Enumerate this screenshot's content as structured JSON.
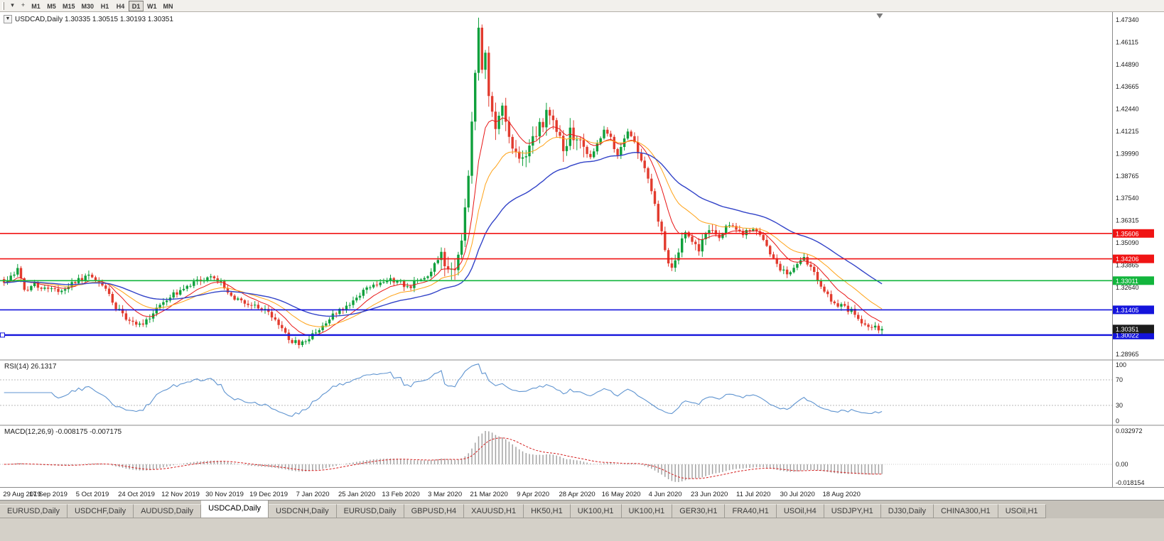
{
  "toolbar": {
    "timeframes": [
      {
        "label": "M1",
        "active": false
      },
      {
        "label": "M5",
        "active": false
      },
      {
        "label": "M15",
        "active": false
      },
      {
        "label": "M30",
        "active": false
      },
      {
        "label": "H1",
        "active": false
      },
      {
        "label": "H4",
        "active": false
      },
      {
        "label": "D1",
        "active": true
      },
      {
        "label": "W1",
        "active": false
      },
      {
        "label": "MN",
        "active": false
      }
    ]
  },
  "chart": {
    "title": "USDCAD,Daily 1.30335 1.30515 1.30193 1.30351",
    "dropdown_glyph": "▼"
  },
  "chart_data": {
    "type": "candlestick",
    "symbol": "USDCAD",
    "period": "Daily",
    "ohlc_display": {
      "open": "1.30335",
      "high": "1.30515",
      "low": "1.30193",
      "close": "1.30351"
    },
    "candle_colors": {
      "up": "#0fa03c",
      "down": "#e23b2e"
    },
    "price_axis": {
      "labels": [
        "1.47340",
        "1.46115",
        "1.44890",
        "1.43665",
        "1.42440",
        "1.41215",
        "1.39990",
        "1.38765",
        "1.37540",
        "1.36315",
        "1.35090",
        "1.33865",
        "1.32640",
        "1.31415",
        "1.30190",
        "1.28965"
      ],
      "values": [
        1.4734,
        1.46115,
        1.4489,
        1.43665,
        1.4244,
        1.41215,
        1.3999,
        1.38765,
        1.3754,
        1.36315,
        1.3509,
        1.33865,
        1.3264,
        1.31415,
        1.3019,
        1.28965
      ]
    },
    "hlines": [
      {
        "text": "1.35606",
        "value": 1.35606,
        "color": "#f01414",
        "width": 1.6,
        "selected": false
      },
      {
        "text": "1.34206",
        "value": 1.34206,
        "color": "#f01414",
        "width": 1.6,
        "selected": false
      },
      {
        "text": "1.33011",
        "value": 1.33011,
        "color": "#12b53c",
        "width": 1.6,
        "selected": false
      },
      {
        "text": "1.31405",
        "value": 1.31405,
        "color": "#1414dc",
        "width": 1.6,
        "selected": false
      },
      {
        "text": "1.30022",
        "value": 1.30022,
        "color": "#1414dc",
        "width": 2.4,
        "selected": true
      }
    ],
    "current_price": {
      "text": "1.30351",
      "value": 1.30351,
      "color": "#1c1c1c"
    },
    "ma_lines": [
      {
        "period": 10,
        "color": "#e81616",
        "width": 1
      },
      {
        "period": 21,
        "color": "#ffa216",
        "width": 1
      },
      {
        "period": 45,
        "color": "#3243c8",
        "width": 1.4
      }
    ],
    "candles": {
      "count": 260,
      "close_anchors": [
        [
          0,
          1.329
        ],
        [
          2,
          1.333
        ],
        [
          4,
          1.3358
        ],
        [
          6,
          1.3245
        ],
        [
          9,
          1.3278
        ],
        [
          13,
          1.3262
        ],
        [
          17,
          1.3232
        ],
        [
          20,
          1.3288
        ],
        [
          23,
          1.3308
        ],
        [
          26,
          1.333
        ],
        [
          28,
          1.3292
        ],
        [
          31,
          1.3222
        ],
        [
          33,
          1.3152
        ],
        [
          36,
          1.3098
        ],
        [
          39,
          1.3072
        ],
        [
          41,
          1.3062
        ],
        [
          44,
          1.3125
        ],
        [
          47,
          1.3185
        ],
        [
          50,
          1.3222
        ],
        [
          52,
          1.3248
        ],
        [
          55,
          1.3278
        ],
        [
          58,
          1.3308
        ],
        [
          61,
          1.333
        ],
        [
          63,
          1.3302
        ],
        [
          65,
          1.3272
        ],
        [
          68,
          1.3202
        ],
        [
          71,
          1.3168
        ],
        [
          74,
          1.3172
        ],
        [
          76,
          1.3152
        ],
        [
          78,
          1.3132
        ],
        [
          81,
          1.3052
        ],
        [
          84,
          1.2982
        ],
        [
          87,
          1.2952
        ],
        [
          89,
          1.2972
        ],
        [
          91,
          1.3002
        ],
        [
          94,
          1.3058
        ],
        [
          97,
          1.3108
        ],
        [
          100,
          1.3152
        ],
        [
          104,
          1.3212
        ],
        [
          107,
          1.3258
        ],
        [
          110,
          1.3288
        ],
        [
          113,
          1.3308
        ],
        [
          117,
          1.3298
        ],
        [
          119,
          1.3258
        ],
        [
          121,
          1.3288
        ],
        [
          123,
          1.3308
        ],
        [
          125,
          1.3328
        ],
        [
          127,
          1.3398
        ],
        [
          129,
          1.3442
        ],
        [
          130,
          1.3382
        ],
        [
          132,
          1.3332
        ],
        [
          134,
          1.3428
        ],
        [
          135,
          1.3555
        ],
        [
          136,
          1.3695
        ],
        [
          137,
          1.39
        ],
        [
          138,
          1.415
        ],
        [
          139,
          1.4455
        ],
        [
          140,
          1.4658
        ],
        [
          141,
          1.448
        ],
        [
          142,
          1.4555
        ],
        [
          143,
          1.4305
        ],
        [
          145,
          1.4152
        ],
        [
          147,
          1.4228
        ],
        [
          149,
          1.4072
        ],
        [
          151,
          1.4002
        ],
        [
          153,
          1.3982
        ],
        [
          156,
          1.4058
        ],
        [
          158,
          1.4148
        ],
        [
          161,
          1.4238
        ],
        [
          163,
          1.4122
        ],
        [
          165,
          1.4032
        ],
        [
          167,
          1.4108
        ],
        [
          169,
          1.4088
        ],
        [
          171,
          1.4012
        ],
        [
          173,
          1.3972
        ],
        [
          175,
          1.4068
        ],
        [
          177,
          1.4118
        ],
        [
          179,
          1.4078
        ],
        [
          181,
          1.3992
        ],
        [
          182,
          1.4028
        ],
        [
          184,
          1.4108
        ],
        [
          186,
          1.4058
        ],
        [
          188,
          1.3962
        ],
        [
          190,
          1.3852
        ],
        [
          192,
          1.3702
        ],
        [
          194,
          1.3552
        ],
        [
          195,
          1.3462
        ],
        [
          196,
          1.3402
        ],
        [
          197,
          1.3372
        ],
        [
          199,
          1.3478
        ],
        [
          201,
          1.3578
        ],
        [
          203,
          1.3522
        ],
        [
          205,
          1.3472
        ],
        [
          207,
          1.3558
        ],
        [
          208,
          1.3588
        ],
        [
          210,
          1.3542
        ],
        [
          212,
          1.3565
        ],
        [
          214,
          1.3618
        ],
        [
          216,
          1.3582
        ],
        [
          218,
          1.3555
        ],
        [
          221,
          1.3588
        ],
        [
          223,
          1.3545
        ],
        [
          225,
          1.3482
        ],
        [
          227,
          1.3412
        ],
        [
          229,
          1.3365
        ],
        [
          231,
          1.3342
        ],
        [
          234,
          1.3395
        ],
        [
          236,
          1.3422
        ],
        [
          238,
          1.3372
        ],
        [
          240,
          1.3302
        ],
        [
          242,
          1.3242
        ],
        [
          244,
          1.3192
        ],
        [
          247,
          1.3162
        ],
        [
          250,
          1.3132
        ],
        [
          252,
          1.3092
        ],
        [
          255,
          1.3042
        ],
        [
          259,
          1.30351
        ]
      ]
    },
    "rsi": {
      "label": "RSI(14) 26.1317",
      "period": 14,
      "levels": [
        70,
        30
      ],
      "scale_labels": [
        "100",
        "70",
        "30",
        "0"
      ],
      "color": "#5f94d0"
    },
    "macd": {
      "label": "MACD(12,26,9) -0.008175 -0.007175",
      "fast": 12,
      "slow": 26,
      "signal": 9,
      "scale_labels": [
        "0.032972",
        "0.00",
        "-0.018154"
      ],
      "hist_color": "#a3a3a3",
      "signal_color": "#d42020"
    },
    "time_axis": {
      "step_candles": 13,
      "labels": [
        "29 Aug 2019",
        "17 Sep 2019",
        "5 Oct 2019",
        "24 Oct 2019",
        "12 Nov 2019",
        "30 Nov 2019",
        "19 Dec 2019",
        "7 Jan 2020",
        "25 Jan 2020",
        "13 Feb 2020",
        "3 Mar 2020",
        "21 Mar 2020",
        "9 Apr 2020",
        "28 Apr 2020",
        "16 May 2020",
        "4 Jun 2020",
        "23 Jun 2020",
        "11 Jul 2020",
        "30 Jul 2020",
        "18 Aug 2020"
      ]
    }
  },
  "tabs": [
    {
      "label": "EURUSD,Daily",
      "active": false
    },
    {
      "label": "USDCHF,Daily",
      "active": false
    },
    {
      "label": "AUDUSD,Daily",
      "active": false
    },
    {
      "label": "USDCAD,Daily",
      "active": true
    },
    {
      "label": "USDCNH,Daily",
      "active": false
    },
    {
      "label": "EURUSD,Daily",
      "active": false
    },
    {
      "label": "GBPUSD,H4",
      "active": false
    },
    {
      "label": "XAUUSD,H1",
      "active": false
    },
    {
      "label": "HK50,H1",
      "active": false
    },
    {
      "label": "UK100,H1",
      "active": false
    },
    {
      "label": "UK100,H1",
      "active": false
    },
    {
      "label": "GER30,H1",
      "active": false
    },
    {
      "label": "FRA40,H1",
      "active": false
    },
    {
      "label": "USOil,H4",
      "active": false
    },
    {
      "label": "USDJPY,H1",
      "active": false
    },
    {
      "label": "DJ30,Daily",
      "active": false
    },
    {
      "label": "CHINA300,H1",
      "active": false
    },
    {
      "label": "USOil,H1",
      "active": false
    }
  ]
}
